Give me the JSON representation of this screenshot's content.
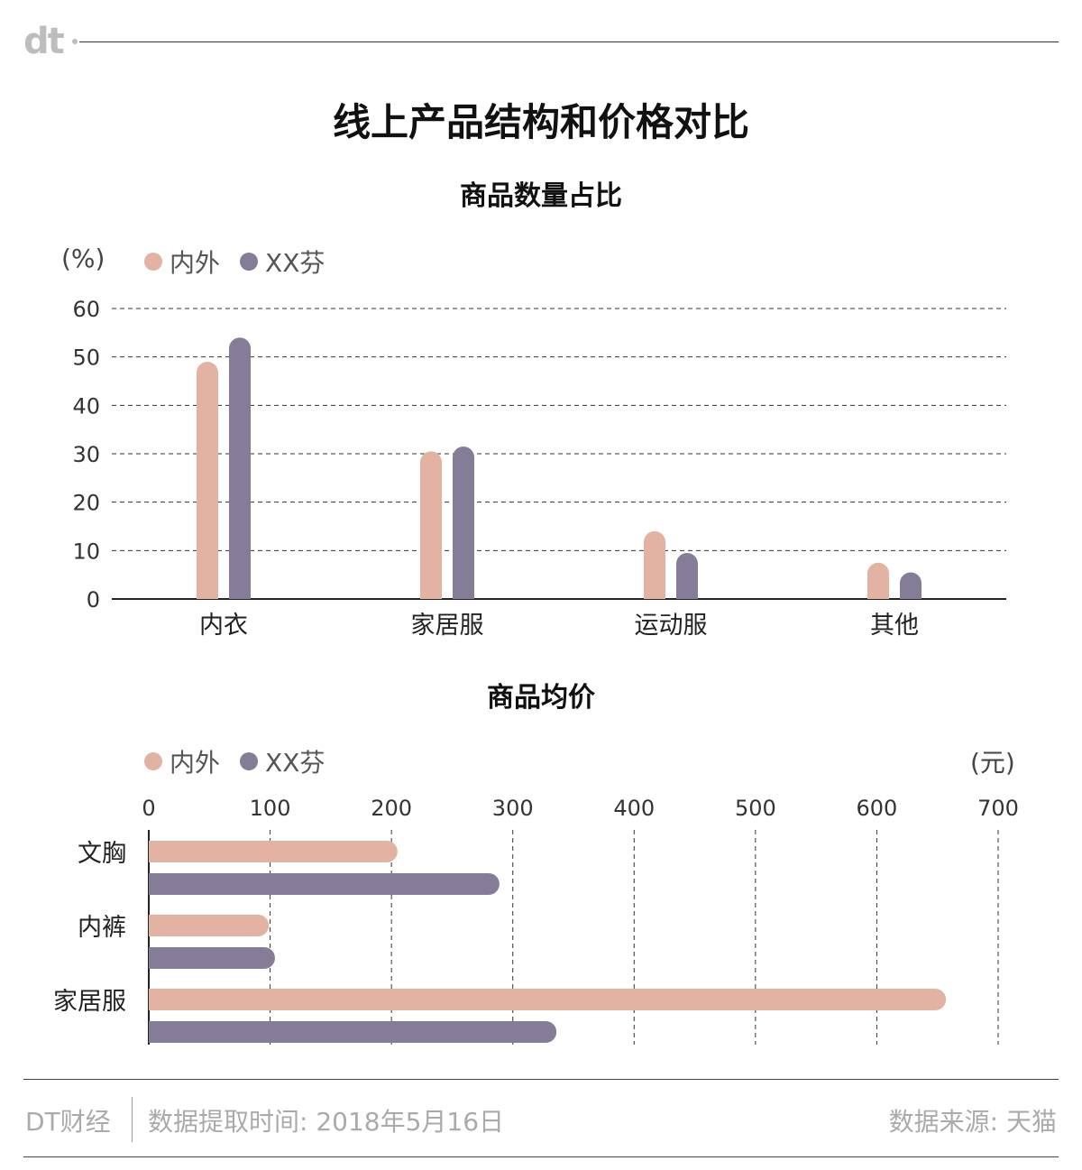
{
  "logo": "dt",
  "title": "线上产品结构和价格对比",
  "colors": {
    "series1": "#e2b3a2",
    "series2": "#857c97",
    "grid": "#333333",
    "axis": "#222222"
  },
  "chart_data": [
    {
      "type": "bar",
      "title": "商品数量占比",
      "unit_label": "(%)",
      "categories": [
        "内衣",
        "家居服",
        "运动服",
        "其他"
      ],
      "series": [
        {
          "name": "内外",
          "values": [
            49,
            30.5,
            14,
            7.5
          ]
        },
        {
          "name": "XX芬",
          "values": [
            54,
            31.5,
            9.5,
            5.5
          ]
        }
      ],
      "y_ticks": [
        "0",
        "10",
        "20",
        "30",
        "40",
        "50",
        "60"
      ],
      "ylim": [
        0,
        60
      ],
      "grid": true,
      "legend": "top-left"
    },
    {
      "type": "bar",
      "orientation": "horizontal",
      "title": "商品均价",
      "unit_label": "(元)",
      "categories": [
        "文胸",
        "内裤",
        "家居服"
      ],
      "series": [
        {
          "name": "内外",
          "values": [
            205,
            99,
            657
          ]
        },
        {
          "name": "XX芬",
          "values": [
            289,
            104,
            336
          ]
        }
      ],
      "x_ticks": [
        "0",
        "100",
        "200",
        "300",
        "400",
        "500",
        "600",
        "700"
      ],
      "xlim": [
        0,
        700
      ],
      "grid": true,
      "legend": "top-left"
    }
  ],
  "footer": {
    "brand": "DT财经",
    "date_text": "数据提取时间: 2018年5月16日",
    "source_text": "数据来源: 天猫"
  }
}
